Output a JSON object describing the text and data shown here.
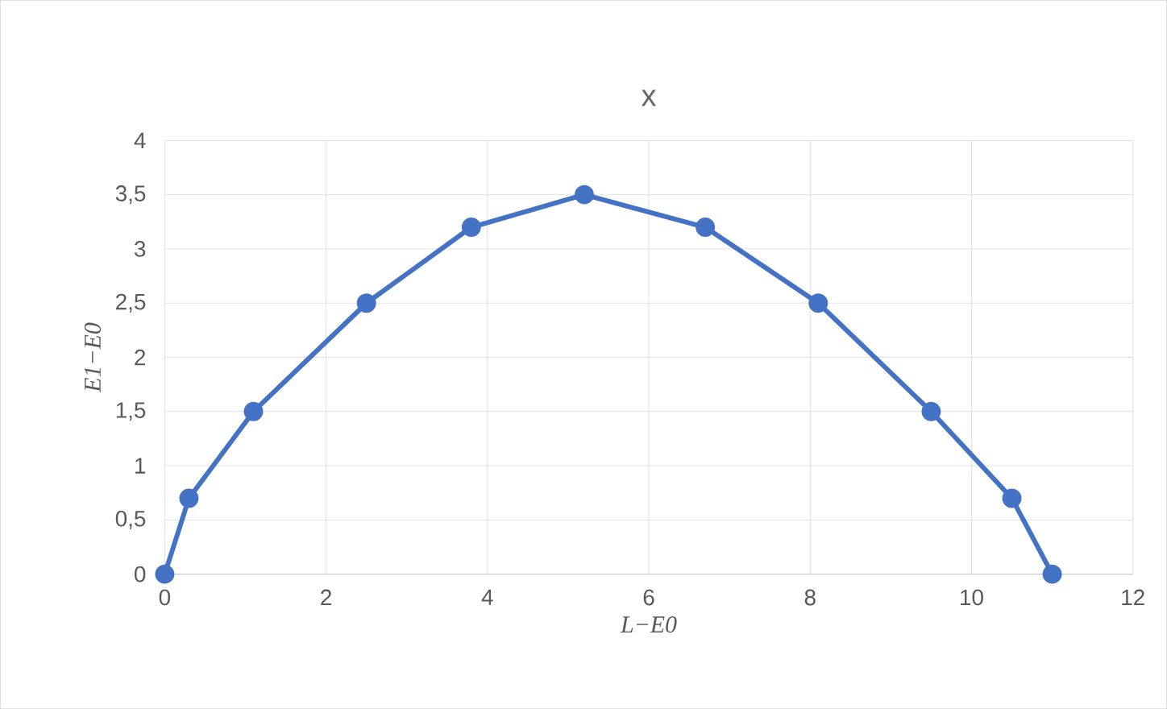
{
  "chart_data": {
    "type": "line",
    "title": "x",
    "xlabel": "L−E0",
    "ylabel": "E1−E0",
    "x": [
      0,
      0.3,
      1.1,
      2.5,
      3.8,
      5.2,
      6.7,
      8.1,
      9.5,
      10.5,
      11
    ],
    "series": [
      {
        "color": "#4472c4",
        "values": [
          0,
          0.7,
          1.5,
          2.5,
          3.2,
          3.5,
          3.2,
          2.5,
          1.5,
          0.7,
          0
        ]
      }
    ],
    "xlim": [
      0,
      12
    ],
    "xticks": [
      0,
      2,
      4,
      6,
      8,
      10,
      12
    ],
    "ylim": [
      0,
      4
    ],
    "yticks": [
      0,
      {
        "value": 0.5,
        "label": "0,5"
      },
      1,
      {
        "value": 1.5,
        "label": "1,5"
      },
      2,
      {
        "value": 2.5,
        "label": "2,5"
      },
      3,
      {
        "value": 3.5,
        "label": "3,5"
      },
      4
    ],
    "grid": true,
    "marker": "circle",
    "line_style": "solid"
  }
}
